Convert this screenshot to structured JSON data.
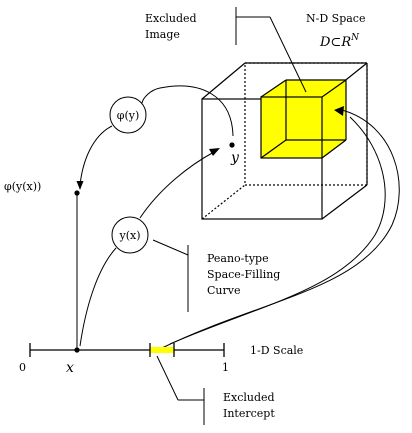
{
  "labels": {
    "excluded_image_line1": "Excluded",
    "excluded_image_line2": "Image",
    "nd_space": "N-D Space",
    "d_subset_r": "D⊂R",
    "d_subset_r_sup": "N",
    "phi_y": "φ(y)",
    "y": "y",
    "phi_y_x": "φ(y(x))",
    "y_x": "y(x)",
    "peano_line1": "Peano-type",
    "peano_line2": "Space-Filling",
    "peano_line3": "Curve",
    "scale_name": "1-D Scale",
    "scale_zero": "0",
    "scale_x": "x",
    "scale_one": "1",
    "excluded_intercept_line1": "Excluded",
    "excluded_intercept_line2": "Intercept"
  },
  "colors": {
    "excluded_fill": "#ffff00",
    "ink": "#000000"
  }
}
